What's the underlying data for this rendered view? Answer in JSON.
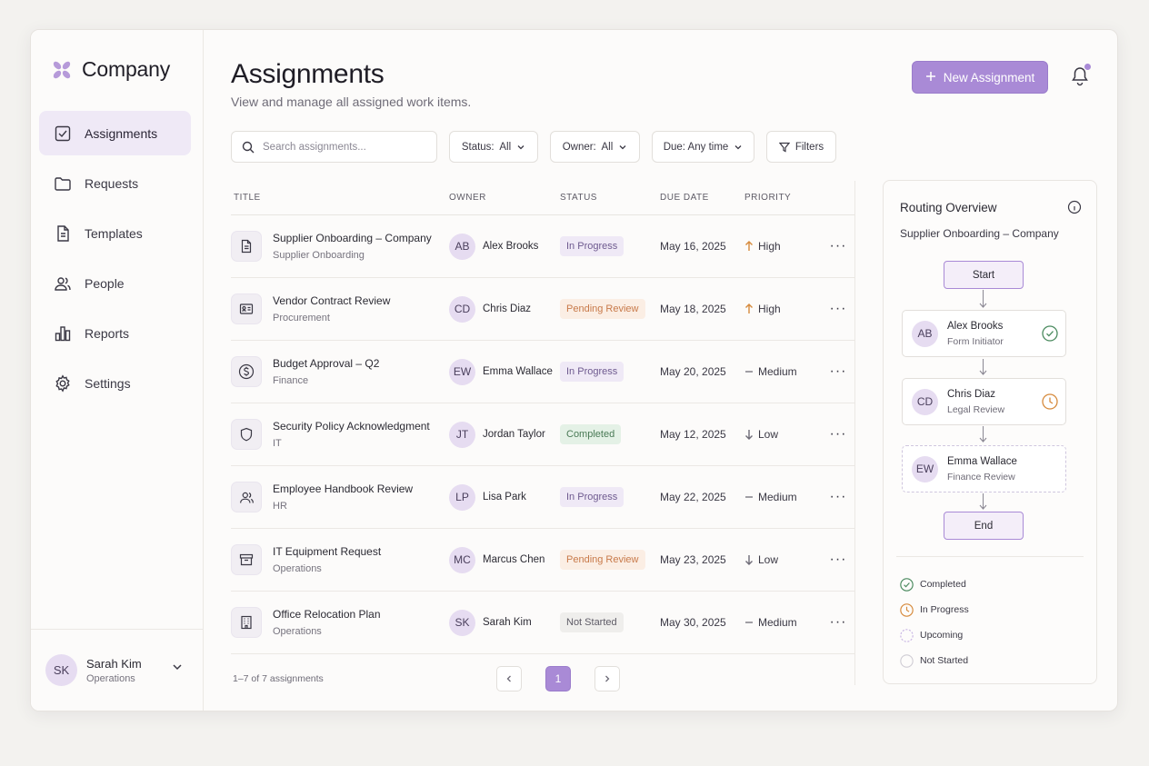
{
  "app": {
    "logo_text": "Company"
  },
  "sidebar": {
    "items": [
      {
        "label": "Assignments",
        "icon": "checkbox-icon",
        "active": true
      },
      {
        "label": "Requests",
        "icon": "folder-icon"
      },
      {
        "label": "Templates",
        "icon": "document-icon"
      },
      {
        "label": "People",
        "icon": "people-icon"
      },
      {
        "label": "Reports",
        "icon": "bar-chart-icon"
      },
      {
        "label": "Settings",
        "icon": "gear-icon"
      }
    ],
    "user": {
      "initials": "SK",
      "name": "Sarah Kim",
      "role": "Operations"
    }
  },
  "header": {
    "title": "Assignments",
    "subtitle": "View and manage all assigned work items.",
    "new_button": "New Assignment"
  },
  "toolbar": {
    "search_placeholder": "Search assignments...",
    "status_filter": "Status:  All",
    "owner_filter": "Owner:  All",
    "due_filter": "Due: Any time",
    "filters_button": "Filters"
  },
  "table": {
    "columns": [
      "TITLE",
      "OWNER",
      "STATUS",
      "DUE DATE",
      "PRIORITY"
    ],
    "rows": [
      {
        "icon": "document-icon",
        "title": "Supplier Onboarding – Company",
        "subtitle": "Supplier Onboarding",
        "owner_initials": "AB",
        "owner": "Alex Brooks",
        "status": "In Progress",
        "due": "May 16, 2025",
        "priority": "High"
      },
      {
        "icon": "contract-icon",
        "title": "Vendor Contract Review",
        "subtitle": "Procurement",
        "owner_initials": "CD",
        "owner": "Chris Diaz",
        "status": "Pending Review",
        "due": "May 18, 2025",
        "priority": "High"
      },
      {
        "icon": "dollar-icon",
        "title": "Budget Approval – Q2",
        "subtitle": "Finance",
        "owner_initials": "EW",
        "owner": "Emma Wallace",
        "status": "In Progress",
        "due": "May 20, 2025",
        "priority": "Medium"
      },
      {
        "icon": "shield-icon",
        "title": "Security Policy Acknowledgment",
        "subtitle": "IT",
        "owner_initials": "JT",
        "owner": "Jordan Taylor",
        "status": "Completed",
        "due": "May 12, 2025",
        "priority": "Low"
      },
      {
        "icon": "people-icon",
        "title": "Employee Handbook Review",
        "subtitle": "HR",
        "owner_initials": "LP",
        "owner": "Lisa Park",
        "status": "In Progress",
        "due": "May 22, 2025",
        "priority": "Medium"
      },
      {
        "icon": "archive-icon",
        "title": "IT Equipment Request",
        "subtitle": "Operations",
        "owner_initials": "MC",
        "owner": "Marcus Chen",
        "status": "Pending Review",
        "due": "May 23, 2025",
        "priority": "Low"
      },
      {
        "icon": "building-icon",
        "title": "Office Relocation Plan",
        "subtitle": "Operations",
        "owner_initials": "SK",
        "owner": "Sarah Kim",
        "status": "Not Started",
        "due": "May 30, 2025",
        "priority": "Medium"
      }
    ],
    "count_text": "1–7 of 7 assignments",
    "current_page": "1"
  },
  "routing": {
    "title": "Routing Overview",
    "subtitle": "Supplier Onboarding – Company",
    "start": "Start",
    "end": "End",
    "steps": [
      {
        "initials": "AB",
        "name": "Alex Brooks",
        "role": "Form Initiator",
        "state": "completed"
      },
      {
        "initials": "CD",
        "name": "Chris Diaz",
        "role": "Legal Review",
        "state": "in-progress"
      },
      {
        "initials": "EW",
        "name": "Emma Wallace",
        "role": "Finance Review",
        "state": "upcoming"
      }
    ],
    "legend": [
      "Completed",
      "In Progress",
      "Upcoming",
      "Not Started"
    ]
  },
  "colors": {
    "accent": "#a98ad6",
    "completed": "#4a8a5e",
    "in_progress": "#d68a3c",
    "upcoming": "#c9b6e4"
  }
}
